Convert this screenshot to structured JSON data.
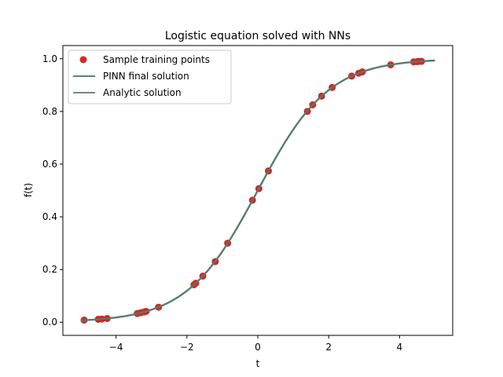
{
  "chart_data": {
    "type": "scatter",
    "title": "Logistic equation solved with NNs",
    "xlabel": "t",
    "ylabel": "f(t)",
    "xlim": [
      -5.5,
      5.5
    ],
    "ylim": [
      -0.05,
      1.05
    ],
    "xticks": [
      -4,
      -2,
      0,
      2,
      4
    ],
    "xtick_labels": [
      "−4",
      "−2",
      "0",
      "2",
      "4"
    ],
    "yticks": [
      0.0,
      0.2,
      0.4,
      0.6,
      0.8,
      1.0
    ],
    "ytick_labels": [
      "0.0",
      "0.2",
      "0.4",
      "0.6",
      "0.8",
      "1.0"
    ],
    "grid": false,
    "legend_position": "top-left",
    "series": [
      {
        "name": "Sample training points",
        "kind": "scatter",
        "color": "#d62728",
        "points": [
          {
            "x": -4.9,
            "y": 0.008
          },
          {
            "x": -4.5,
            "y": 0.011
          },
          {
            "x": -4.4,
            "y": 0.012
          },
          {
            "x": -4.25,
            "y": 0.014
          },
          {
            "x": -3.4,
            "y": 0.033
          },
          {
            "x": -3.3,
            "y": 0.036
          },
          {
            "x": -3.2,
            "y": 0.039
          },
          {
            "x": -3.15,
            "y": 0.041
          },
          {
            "x": -2.8,
            "y": 0.057
          },
          {
            "x": -1.8,
            "y": 0.142
          },
          {
            "x": -1.75,
            "y": 0.148
          },
          {
            "x": -1.55,
            "y": 0.175
          },
          {
            "x": -1.2,
            "y": 0.23
          },
          {
            "x": -0.85,
            "y": 0.3
          },
          {
            "x": -0.15,
            "y": 0.463
          },
          {
            "x": 0.03,
            "y": 0.507
          },
          {
            "x": 0.3,
            "y": 0.574
          },
          {
            "x": 1.4,
            "y": 0.8
          },
          {
            "x": 1.55,
            "y": 0.825
          },
          {
            "x": 1.8,
            "y": 0.858
          },
          {
            "x": 2.1,
            "y": 0.891
          },
          {
            "x": 2.65,
            "y": 0.934
          },
          {
            "x": 2.85,
            "y": 0.945
          },
          {
            "x": 2.95,
            "y": 0.95
          },
          {
            "x": 3.75,
            "y": 0.977
          },
          {
            "x": 4.4,
            "y": 0.988
          },
          {
            "x": 4.5,
            "y": 0.989
          },
          {
            "x": 4.55,
            "y": 0.99
          },
          {
            "x": 4.62,
            "y": 0.99
          }
        ]
      },
      {
        "name": "PINN final solution",
        "kind": "line",
        "color": "#3a7a5a",
        "function": "logistic",
        "x_range": [
          -5,
          5
        ]
      },
      {
        "name": "Analytic solution",
        "kind": "line",
        "color": "#5b7b6c",
        "function": "logistic",
        "x_range": [
          -5,
          5
        ]
      }
    ]
  }
}
